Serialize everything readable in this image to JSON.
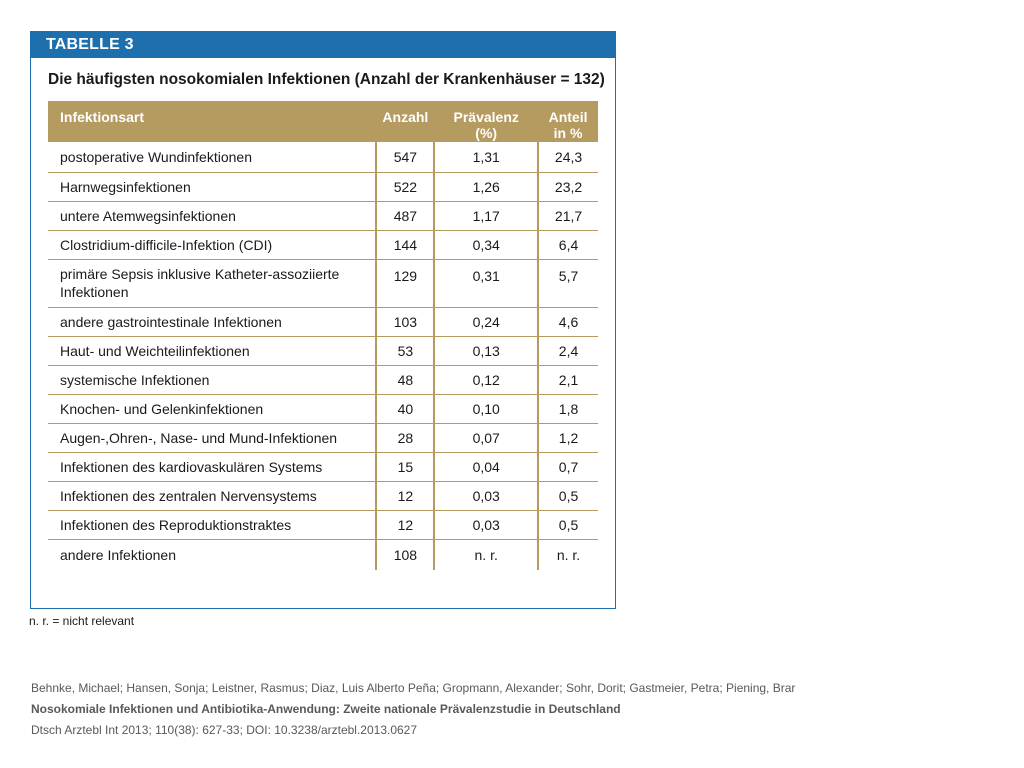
{
  "table": {
    "banner": "TABELLE 3",
    "title": "Die häufigsten nosokomialen Infektionen (Anzahl der Krankenhäuser = 132)",
    "headers": {
      "name": "Infektionsart",
      "anzahl": "Anzahl",
      "praevalenz_line1": "Prävalenz",
      "praevalenz_line2": "(%)",
      "anteil_line1": "Anteil",
      "anteil_line2": "in %"
    },
    "rows": [
      {
        "name": "postoperative Wundinfektionen",
        "anzahl": "547",
        "praevalenz": "1,31",
        "anteil": "24,3"
      },
      {
        "name": "Harnwegsinfektionen",
        "anzahl": "522",
        "praevalenz": "1,26",
        "anteil": "23,2"
      },
      {
        "name": "untere Atemwegsinfektionen",
        "anzahl": "487",
        "praevalenz": "1,17",
        "anteil": "21,7"
      },
      {
        "name": "Clostridium-difficile-Infektion (CDI)",
        "anzahl": "144",
        "praevalenz": "0,34",
        "anteil": "6,4"
      },
      {
        "name": "primäre Sepsis inklusive Katheter-assoziierte Infektionen",
        "anzahl": "129",
        "praevalenz": "0,31",
        "anteil": "5,7"
      },
      {
        "name": "andere gastrointestinale Infektionen",
        "anzahl": "103",
        "praevalenz": "0,24",
        "anteil": "4,6"
      },
      {
        "name": "Haut- und Weichteilinfektionen",
        "anzahl": "53",
        "praevalenz": "0,13",
        "anteil": "2,4"
      },
      {
        "name": "systemische Infektionen",
        "anzahl": "48",
        "praevalenz": "0,12",
        "anteil": "2,1"
      },
      {
        "name": "Knochen- und Gelenkinfektionen",
        "anzahl": "40",
        "praevalenz": "0,10",
        "anteil": "1,8"
      },
      {
        "name": "Augen-,Ohren-, Nase- und Mund-Infektionen",
        "anzahl": "28",
        "praevalenz": "0,07",
        "anteil": "1,2"
      },
      {
        "name": "Infektionen des kardiovaskulären Systems",
        "anzahl": "15",
        "praevalenz": "0,04",
        "anteil": "0,7"
      },
      {
        "name": "Infektionen des zentralen Nervensystems",
        "anzahl": "12",
        "praevalenz": "0,03",
        "anteil": "0,5"
      },
      {
        "name": "Infektionen des Reproduktionstraktes",
        "anzahl": "12",
        "praevalenz": "0,03",
        "anteil": "0,5"
      },
      {
        "name": "andere Infektionen",
        "anzahl": "108",
        "praevalenz": "n. r.",
        "anteil": "n. r."
      }
    ],
    "footnote": "n. r. = nicht relevant"
  },
  "citation": {
    "authors": "Behnke, Michael; Hansen, Sonja; Leistner, Rasmus; Diaz, Luis Alberto Peña; Gropmann, Alexander; Sohr, Dorit; Gastmeier, Petra; Piening, Brar",
    "title": "Nosokomiale Infektionen und Antibiotika-Anwendung: Zweite nationale Prävalenzstudie in Deutschland",
    "source": "Dtsch Arztebl Int 2013; 110(38): 627-33; DOI: 10.3238/arztebl.2013.0627"
  },
  "colors": {
    "banner_blue": "#1d6fae",
    "header_gold": "#b59b60"
  }
}
